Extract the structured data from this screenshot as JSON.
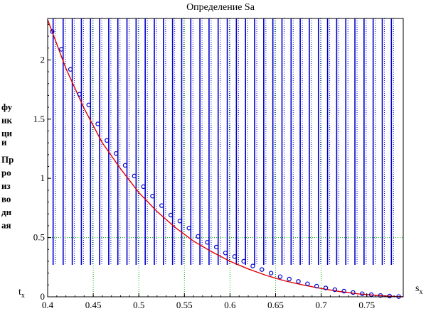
{
  "chart_data": {
    "type": "line",
    "title": "Определение Sa",
    "xlabel": "s_x",
    "ylabel_lines": [
      "фу",
      "нк",
      "ци",
      "и",
      "Пр",
      "ро",
      "из",
      "во",
      "дн",
      "ая"
    ],
    "ylabel_overlaps": [
      [
        "ф",
        "у"
      ],
      [
        "ц",
        "и",
        "П"
      ]
    ],
    "x_end_tick_sub": "t_x",
    "xlim": [
      0.4,
      0.79
    ],
    "ylim": [
      0,
      2.35
    ],
    "xticks": [
      0.4,
      0.45,
      0.5,
      0.55,
      0.6,
      0.65,
      0.7,
      0.75
    ],
    "xtick_labels": [
      "0.4",
      "0.45",
      "0.5",
      "0.55",
      "0.6",
      "0.65",
      "0.7",
      "0.75"
    ],
    "yticks": [
      0,
      0.5,
      1,
      1.5,
      2
    ],
    "ytick_labels": [
      "0",
      "0.5",
      "1",
      "1.5",
      "2"
    ],
    "grid": {
      "x": [
        0.45,
        0.5,
        0.55,
        0.6,
        0.65,
        0.7
      ],
      "y": [
        0.5
      ],
      "style": "dotted",
      "color": "#00b000"
    },
    "series": [
      {
        "kind": "curve",
        "color": "#e00000",
        "x": [
          0.4,
          0.42,
          0.44,
          0.46,
          0.48,
          0.5,
          0.52,
          0.54,
          0.56,
          0.58,
          0.6,
          0.62,
          0.64,
          0.66,
          0.68,
          0.7,
          0.72,
          0.74,
          0.76,
          0.78,
          0.79
        ],
        "y": [
          2.34,
          1.93,
          1.59,
          1.3,
          1.08,
          0.88,
          0.72,
          0.585,
          0.47,
          0.38,
          0.3,
          0.235,
          0.18,
          0.135,
          0.1,
          0.07,
          0.045,
          0.025,
          0.012,
          0.003,
          0.0
        ]
      },
      {
        "kind": "markers",
        "color": "#0000cc",
        "marker": "circle",
        "x": [
          0.405,
          0.415,
          0.425,
          0.435,
          0.445,
          0.455,
          0.465,
          0.475,
          0.485,
          0.495,
          0.505,
          0.515,
          0.525,
          0.535,
          0.545,
          0.555,
          0.565,
          0.575,
          0.585,
          0.595,
          0.605,
          0.615,
          0.625,
          0.635,
          0.645,
          0.655,
          0.665,
          0.675,
          0.685,
          0.695,
          0.705,
          0.715,
          0.725,
          0.735,
          0.745,
          0.755,
          0.765,
          0.775,
          0.785
        ],
        "y": [
          2.24,
          2.09,
          1.92,
          1.71,
          1.62,
          1.46,
          1.32,
          1.21,
          1.11,
          1.02,
          0.93,
          0.85,
          0.77,
          0.69,
          0.64,
          0.58,
          0.51,
          0.46,
          0.42,
          0.37,
          0.34,
          0.3,
          0.26,
          0.23,
          0.2,
          0.17,
          0.15,
          0.13,
          0.11,
          0.09,
          0.075,
          0.06,
          0.048,
          0.036,
          0.026,
          0.018,
          0.011,
          0.006,
          0.002
        ]
      },
      {
        "kind": "spikes",
        "color": "#0000cc",
        "y_low": 0.27,
        "y_high": 2.35,
        "x": [
          0.406,
          0.417,
          0.427,
          0.437,
          0.447,
          0.457,
          0.467,
          0.477,
          0.487,
          0.497,
          0.507,
          0.517,
          0.527,
          0.537,
          0.547,
          0.557,
          0.567,
          0.577,
          0.587,
          0.597,
          0.607,
          0.617,
          0.627,
          0.637,
          0.647,
          0.657,
          0.667,
          0.677,
          0.687,
          0.697,
          0.707,
          0.717,
          0.727,
          0.737,
          0.747,
          0.757,
          0.767,
          0.777
        ]
      }
    ]
  }
}
